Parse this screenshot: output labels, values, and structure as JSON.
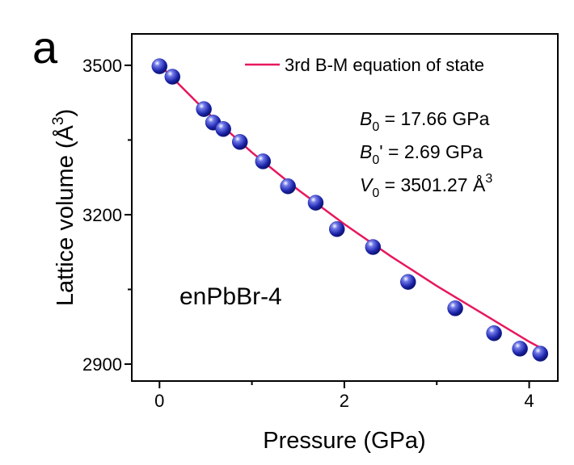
{
  "chart_data": {
    "type": "scatter",
    "panel_label": "a",
    "xlabel": "Pressure (GPa)",
    "ylabel": {
      "text": "Lattice volume (Å",
      "superscript": "3",
      "tail": ")"
    },
    "xlim": [
      -0.3,
      4.31
    ],
    "ylim": [
      2866,
      3563
    ],
    "xticks": [
      0,
      2,
      4
    ],
    "yticks": [
      2900,
      3200,
      3500
    ],
    "xminor": [
      1,
      3
    ],
    "yminor": [
      3050,
      3350
    ],
    "series": [
      {
        "name": "3rd B-M equation of state",
        "kind": "line",
        "color": "#e8175d",
        "x": [
          0,
          0.5,
          1,
          1.5,
          2,
          2.5,
          3,
          3.5,
          4,
          4.12
        ],
        "values": [
          3501,
          3408,
          3325,
          3250,
          3181,
          3117,
          3057,
          3001,
          2945,
          2933
        ]
      },
      {
        "kind": "points",
        "color": "#1a22a8",
        "x": [
          0,
          0.14,
          0.48,
          0.58,
          0.69,
          0.87,
          1.12,
          1.39,
          1.69,
          1.92,
          2.31,
          2.69,
          3.2,
          3.62,
          3.9,
          4.12
        ],
        "values": [
          3498,
          3477,
          3412,
          3385,
          3372,
          3346,
          3307,
          3257,
          3224,
          3171,
          3135,
          3065,
          3012,
          2962,
          2931,
          2921
        ]
      }
    ],
    "fit_parameters": [
      {
        "symbol": "B",
        "subscript": "0",
        "text": " = 17.66 GPa"
      },
      {
        "symbol": "B",
        "subscript": "0",
        "text": "' = 2.69 GPa"
      },
      {
        "symbol": "V",
        "subscript": "0",
        "text": " = 3501.27 Å",
        "superscript": "3"
      }
    ],
    "annotation": "enPbBr-4"
  }
}
